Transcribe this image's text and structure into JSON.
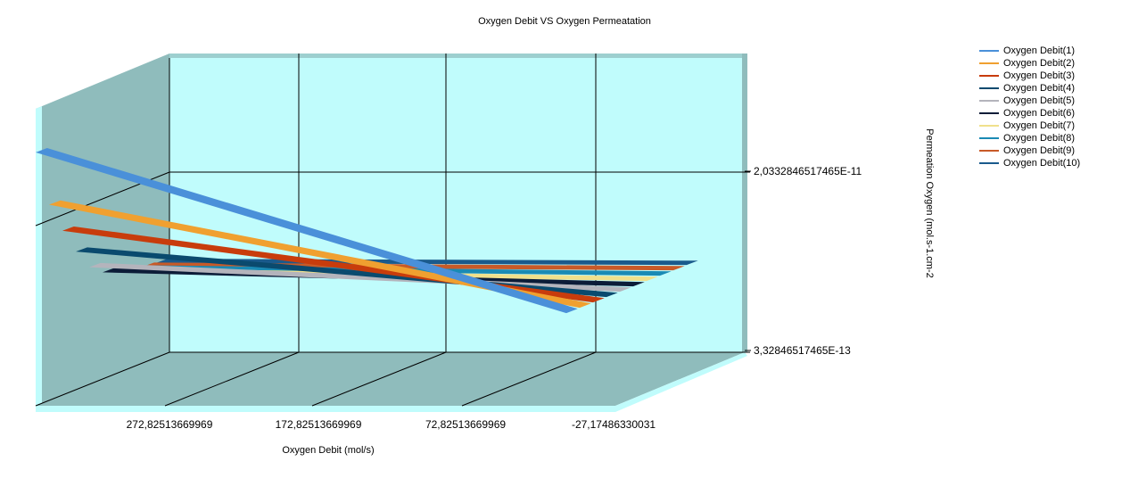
{
  "chart_data": {
    "type": "line",
    "rendering": "3d-ribbon",
    "title": "Oxygen Debit VS Oxygen Permeatation",
    "xlabel": "Oxygen Debit (mol/s)",
    "ylabel": "Permeation Oxygen (mol.s-1.cm-2",
    "x_tick_labels": [
      "272,82513669969",
      "172,82513669969",
      "72,82513669969",
      "-27,17486330031"
    ],
    "y_tick_labels": [
      "2,0332846517465E-11",
      "3,32846517465E-13"
    ],
    "xlim": [
      -27.17486330031,
      322.82513669969
    ],
    "ylim": [
      -1.6666e-11,
      4.0333e-11
    ],
    "grid": true,
    "legend_position": "top-right",
    "series": [
      {
        "name": "Oxygen Debit(1)",
        "color": "#4a90d9",
        "x": [
          322.82513669969,
          0
        ],
        "y": [
          3.1e-11,
          3.3e-13
        ]
      },
      {
        "name": "Oxygen Debit(2)",
        "color": "#f0a030",
        "x": [
          322.82513669969,
          0
        ],
        "y": [
          2e-11,
          3.3e-13
        ]
      },
      {
        "name": "Oxygen Debit(3)",
        "color": "#c83c0c",
        "x": [
          322.82513669969,
          0
        ],
        "y": [
          1.4e-11,
          3.3e-13
        ]
      },
      {
        "name": "Oxygen Debit(4)",
        "color": "#0a4a6e",
        "x": [
          322.82513669969,
          0
        ],
        "y": [
          9e-12,
          3.3e-13
        ]
      },
      {
        "name": "Oxygen Debit(5)",
        "color": "#b4b4bc",
        "x": [
          322.82513669969,
          0
        ],
        "y": [
          5e-12,
          3.3e-13
        ]
      },
      {
        "name": "Oxygen Debit(6)",
        "color": "#0c1c38",
        "x": [
          322.82513669969,
          0
        ],
        "y": [
          3e-12,
          3.3e-13
        ]
      },
      {
        "name": "Oxygen Debit(7)",
        "color": "#f0e08c",
        "x": [
          322.82513669969,
          0
        ],
        "y": [
          2e-12,
          3.3e-13
        ]
      },
      {
        "name": "Oxygen Debit(8)",
        "color": "#1a8ab4",
        "x": [
          322.82513669969,
          0
        ],
        "y": [
          1.5e-12,
          3.3e-13
        ]
      },
      {
        "name": "Oxygen Debit(9)",
        "color": "#c85a28",
        "x": [
          322.82513669969,
          0
        ],
        "y": [
          1e-12,
          3.3e-13
        ]
      },
      {
        "name": "Oxygen Debit(10)",
        "color": "#1a5a8c",
        "x": [
          322.82513669969,
          0
        ],
        "y": [
          7e-13,
          3.3e-13
        ]
      }
    ]
  }
}
